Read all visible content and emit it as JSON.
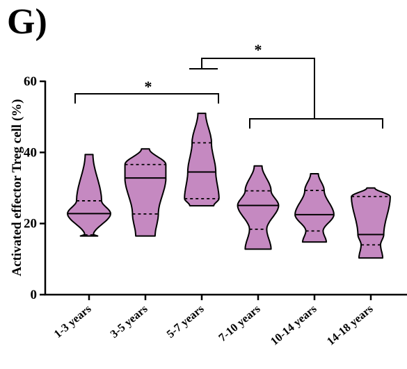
{
  "panel_label": "G)",
  "chart_data": {
    "type": "violin",
    "ylabel": "Activated effector Treg cell (%)",
    "xlabel": "",
    "ylim": [
      0,
      60
    ],
    "yticks": [
      "0",
      "20",
      "40",
      "60"
    ],
    "grid": false,
    "legend": "none",
    "fill_color": "#c589c1",
    "stroke_color": "#000000",
    "categories": [
      "1-3 years",
      "3-5 years",
      "5-7 years",
      "7-10 years",
      "10-14 years",
      "14-18 years"
    ],
    "violins": [
      {
        "name": "1-3 years",
        "min": 16.5,
        "q1": 16.8,
        "median": 22.8,
        "q3": 26.4,
        "max": 39.4
      },
      {
        "name": "3-5 years",
        "min": 16.5,
        "q1": 22.7,
        "median": 32.8,
        "q3": 36.6,
        "max": 41.0
      },
      {
        "name": "5-7 years",
        "min": 25.0,
        "q1": 27.0,
        "median": 34.5,
        "q3": 42.7,
        "max": 51.0
      },
      {
        "name": "7-10 years",
        "min": 12.8,
        "q1": 18.4,
        "median": 25.1,
        "q3": 29.2,
        "max": 36.2
      },
      {
        "name": "10-14 years",
        "min": 14.8,
        "q1": 17.9,
        "median": 22.5,
        "q3": 29.3,
        "max": 34.0
      },
      {
        "name": "14-18 years",
        "min": 10.3,
        "q1": 14.0,
        "median": 16.9,
        "q3": 27.6,
        "max": 30.0
      }
    ],
    "significance": [
      {
        "label": "*",
        "from": "1-3 years",
        "to": "5-7 years"
      },
      {
        "label": "*",
        "from": "5-7 years",
        "to": [
          "7-10 years",
          "10-14 years",
          "14-18 years"
        ]
      }
    ]
  }
}
